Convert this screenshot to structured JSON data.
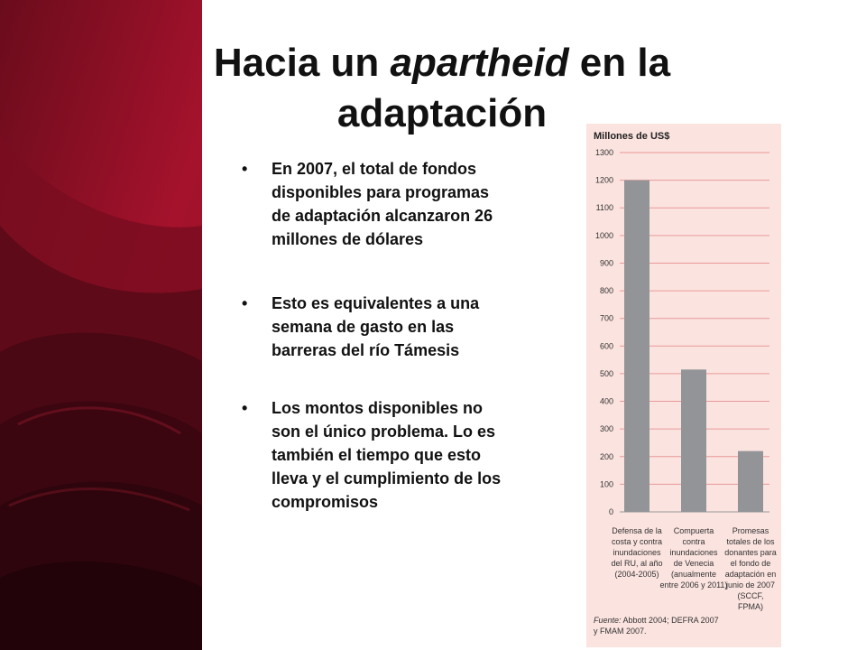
{
  "slide": {
    "title_part1": "Hacia un ",
    "title_italic": "apartheid",
    "title_part2": " en la adaptación",
    "bullets": [
      "En 2007, el total de fondos disponibles para programas de adaptación alcanzaron 26 millones de dólares",
      "Esto es equivalentes a una semana de gasto en las barreras del río Támesis",
      "Los montos disponibles no son el único problema. Lo es también el tiempo que esto lleva y el cumplimiento de los compromisos"
    ]
  },
  "colors": {
    "background_dark": "#5a0a18",
    "background_red": "#a3102a",
    "chart_background": "#fbe3df",
    "gridline": "#e89a9a",
    "bar": "#929497"
  },
  "chart_data": {
    "type": "bar",
    "ylabel": "Millones de US$",
    "ylim": [
      0,
      1300
    ],
    "yticks": [
      0,
      100,
      200,
      300,
      400,
      500,
      600,
      700,
      800,
      900,
      1000,
      1100,
      1200,
      1300
    ],
    "grid": true,
    "categories": [
      [
        "Defensa de la",
        "costa y contra",
        "inundaciones",
        "del RU, al año",
        "(2004-2005)"
      ],
      [
        "Compuerta",
        "contra",
        "inundaciones",
        "de Venecia",
        "(anualmente",
        "entre 2006 y 2011)"
      ],
      [
        "Promesas",
        "totales de los",
        "donantes para",
        "el fondo de",
        "adaptación en",
        "junio de 2007",
        "(SCCF,",
        "FPMA)"
      ]
    ],
    "values": [
      1200,
      515,
      220
    ],
    "source_label": "Fuente:",
    "source_lines": [
      " Abbott 2004; DEFRA 2007",
      "y FMAM 2007."
    ]
  }
}
